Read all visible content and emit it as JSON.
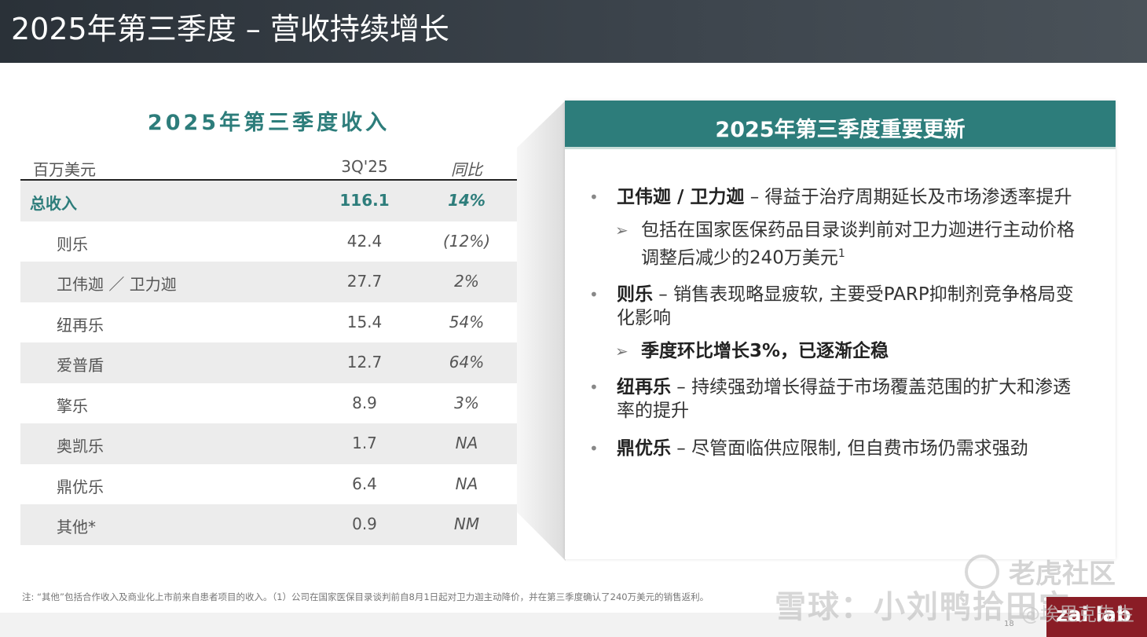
{
  "header": {
    "title": "2025年第三季度 – 营收持续增长"
  },
  "revenue_table": {
    "title": "2025年第三季度收入",
    "columns": {
      "label": "百万美元",
      "period": "3Q'25",
      "yoy": "同比"
    },
    "rows": [
      {
        "label": "总收入",
        "value": "116.1",
        "yoy": "14%"
      },
      {
        "label": "则乐",
        "value": "42.4",
        "yoy": "(12%)"
      },
      {
        "label": "卫伟迦 ／ 卫力迦",
        "value": "27.7",
        "yoy": "2%"
      },
      {
        "label": "纽再乐",
        "value": "15.4",
        "yoy": "54%"
      },
      {
        "label": "爱普盾",
        "value": "12.7",
        "yoy": "64%"
      },
      {
        "label": "擎乐",
        "value": "8.9",
        "yoy": "3%"
      },
      {
        "label": "奥凯乐",
        "value": "1.7",
        "yoy": "NA"
      },
      {
        "label": "鼎优乐",
        "value": "6.4",
        "yoy": "NA"
      },
      {
        "label": "其他*",
        "value": "0.9",
        "yoy": "NM"
      }
    ]
  },
  "updates": {
    "title": "2025年第三季度重要更新",
    "bullet_symbol": "•",
    "sub_symbol": "➢",
    "items": [
      {
        "name": "卫伟迦 / 卫力迦",
        "text": " – 得益于治疗周期延长及市场渗透率提升",
        "sub": {
          "text": "包括在国家医保药品目录谈判前对卫力迦进行主动价格调整后减少的240万美元",
          "sup": "1"
        }
      },
      {
        "name": "则乐",
        "text": " – 销售表现略显疲软, 主要受PARP抑制剂竞争格局变化影响",
        "sub": {
          "text": "季度环比增长3%，已逐渐企稳",
          "sup": ""
        }
      },
      {
        "name": "纽再乐",
        "text": " – 持续强劲增长得益于市场覆盖范围的扩大和渗透率的提升"
      },
      {
        "name": "鼎优乐",
        "text": " – 尽管面临供应限制, 但自费市场仍需求强劲"
      }
    ]
  },
  "footnote": "注: “其他”包括合作收入及商业化上市前来自患者项目的收入。（1）公司在国家医保目录谈判前自8月1日起对卫力迦主动降价，并在第三季度确认了240万美元的销售返利。",
  "page_number": "18",
  "logo": {
    "text": "zai lab"
  },
  "watermarks": {
    "community": "老虎社区",
    "xueqiu": "雪球：小刘鸭拾田宝",
    "author": "@埃里克先生"
  },
  "colors": {
    "accent": "#2d7d7b",
    "header_bg": "#3a4249",
    "logo_bg": "#8a1d26"
  }
}
